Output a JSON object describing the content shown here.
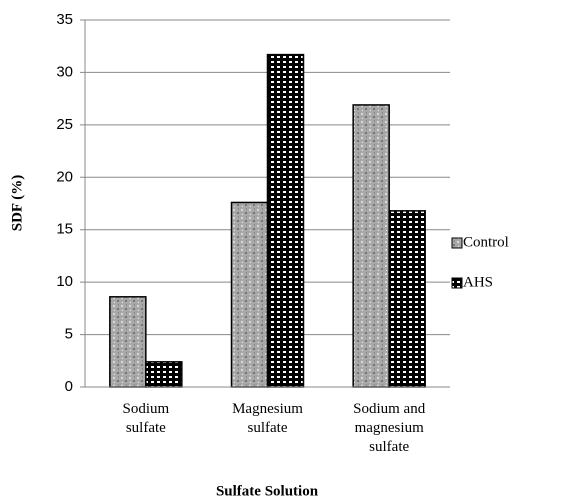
{
  "chart_data": {
    "type": "bar",
    "categories": [
      "Sodium sulfate",
      "Magnesium sulfate",
      "Sodium and magnesium sulfate"
    ],
    "series": [
      {
        "name": "Control",
        "color": "#a8a8a8",
        "values": [
          8.6,
          17.6,
          26.9
        ]
      },
      {
        "name": "AHS",
        "color": "#000000",
        "values": [
          2.4,
          31.7,
          16.8
        ]
      }
    ],
    "x_label": "Sulfate Solution",
    "y_label": "SDF (%)",
    "ylim": [
      0,
      35
    ],
    "yticks": [
      0,
      5,
      10,
      15,
      20,
      25,
      30,
      35
    ],
    "grid": true,
    "legend": "right"
  }
}
